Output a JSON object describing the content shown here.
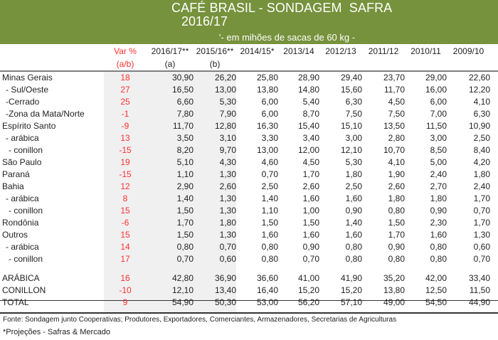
{
  "header": {
    "title_line1": "CAFÉ BRASIL - SONDAGEM  SAFRA",
    "title_line2": "2016/17",
    "unit_note": "'- em mihões de sacas de 60 kg -",
    "banner_color": "#76923c"
  },
  "table": {
    "columns": [
      {
        "label": "Var %",
        "sub": "(a/b)"
      },
      {
        "label": "2016/17**",
        "sub": "(a)"
      },
      {
        "label": "2015/16**",
        "sub": "(b)"
      },
      {
        "label": "2014/15*",
        "sub": ""
      },
      {
        "label": "2013/14",
        "sub": ""
      },
      {
        "label": "2012/13",
        "sub": ""
      },
      {
        "label": "2011/12",
        "sub": ""
      },
      {
        "label": "2010/11",
        "sub": ""
      },
      {
        "label": "2009/10",
        "sub": ""
      }
    ],
    "rows": [
      {
        "label": "Minas Gerais",
        "var": "18",
        "values": [
          "30,90",
          "26,20",
          "25,80",
          "28,90",
          "29,40",
          "23,70",
          "29,00",
          "22,60"
        ]
      },
      {
        "label": "- Sul/Oeste",
        "var": "27",
        "values": [
          "16,50",
          "13,00",
          "13,80",
          "14,80",
          "15,60",
          "11,70",
          "16,00",
          "12,20"
        ]
      },
      {
        "label": "-Cerrado",
        "var": "25",
        "values": [
          "6,60",
          "5,30",
          "6,00",
          "5,40",
          "6,30",
          "4,50",
          "6,00",
          "4,10"
        ]
      },
      {
        "label": "-Zona da Mata/Norte",
        "var": "-1",
        "values": [
          "7,80",
          "7,90",
          "6,00",
          "8,70",
          "7,50",
          "7,50",
          "7,00",
          "6,30"
        ]
      },
      {
        "label": "Espírito Santo",
        "var": "-9",
        "values": [
          "11,70",
          "12,80",
          "16,30",
          "15,40",
          "15,10",
          "13,50",
          "11,50",
          "10,90"
        ]
      },
      {
        "label": "- arábica",
        "var": "13",
        "values": [
          "3,50",
          "3,10",
          "3,30",
          "3,40",
          "3,00",
          "2,80",
          "3,00",
          "2,50"
        ]
      },
      {
        "label": "- conillon",
        "var": "-15",
        "values": [
          "8,20",
          "9,70",
          "13,00",
          "12,00",
          "12,10",
          "10,70",
          "8,50",
          "8,40"
        ]
      },
      {
        "label": "São Paulo",
        "var": "19",
        "values": [
          "5,10",
          "4,30",
          "4,60",
          "4,50",
          "5,30",
          "4,10",
          "5,00",
          "4,20"
        ]
      },
      {
        "label": "Paraná",
        "var": "-15",
        "values": [
          "1,10",
          "1,30",
          "0,70",
          "1,70",
          "1,80",
          "1,90",
          "2,40",
          "1,80"
        ]
      },
      {
        "label": "Bahia",
        "var": "12",
        "values": [
          "2,90",
          "2,60",
          "2,50",
          "2,60",
          "2,50",
          "2,60",
          "2,70",
          "2,40"
        ]
      },
      {
        "label": "- arábica",
        "var": "8",
        "values": [
          "1,40",
          "1,30",
          "1,40",
          "1,60",
          "1,60",
          "1,80",
          "1,80",
          "1,70"
        ]
      },
      {
        "label": "- conillon",
        "var": "15",
        "values": [
          "1,50",
          "1,30",
          "1,10",
          "1,00",
          "0,90",
          "0,80",
          "0,90",
          "0,70"
        ]
      },
      {
        "label": "Rondônia",
        "var": "-6",
        "values": [
          "1,70",
          "1,80",
          "1,50",
          "1,50",
          "1,40",
          "1,50",
          "2,30",
          "1,70"
        ]
      },
      {
        "label": "Outros",
        "var": "15",
        "values": [
          "1,50",
          "1,30",
          "1,60",
          "1,60",
          "1,60",
          "1,70",
          "1,60",
          "1,30"
        ]
      },
      {
        "label": "- arábica",
        "var": "14",
        "values": [
          "0,80",
          "0,70",
          "0,80",
          "0,90",
          "0,80",
          "0,90",
          "0,80",
          "0,60"
        ]
      },
      {
        "label": "- conillon",
        "var": "17",
        "values": [
          "0,70",
          "0,60",
          "0,80",
          "0,70",
          "0,80",
          "0,80",
          "0,80",
          "0,70"
        ]
      }
    ],
    "totals": [
      {
        "label": "ARÁBICA",
        "var": "16",
        "values": [
          "42,80",
          "36,90",
          "36,60",
          "41,00",
          "41,90",
          "35,20",
          "42,00",
          "33,40"
        ]
      },
      {
        "label": "CONILLON",
        "var": "-10",
        "values": [
          "12,10",
          "13,40",
          "16,40",
          "15,20",
          "15,20",
          "13,80",
          "12,50",
          "11,50"
        ]
      },
      {
        "label": "TOTAL",
        "var": "9",
        "values": [
          "54,90",
          "50,30",
          "53,00",
          "56,20",
          "57,10",
          "49,00",
          "54,50",
          "44,90"
        ]
      }
    ],
    "var_color": "#ff0000"
  },
  "footer": {
    "source": "Fonte: Sondagem junto Cooperativas; Produtores, Exportadores, Comerciantes, Armazenadores, Secretarias de Agriculturas",
    "note": "*Projeções - Safras & Mercado"
  }
}
